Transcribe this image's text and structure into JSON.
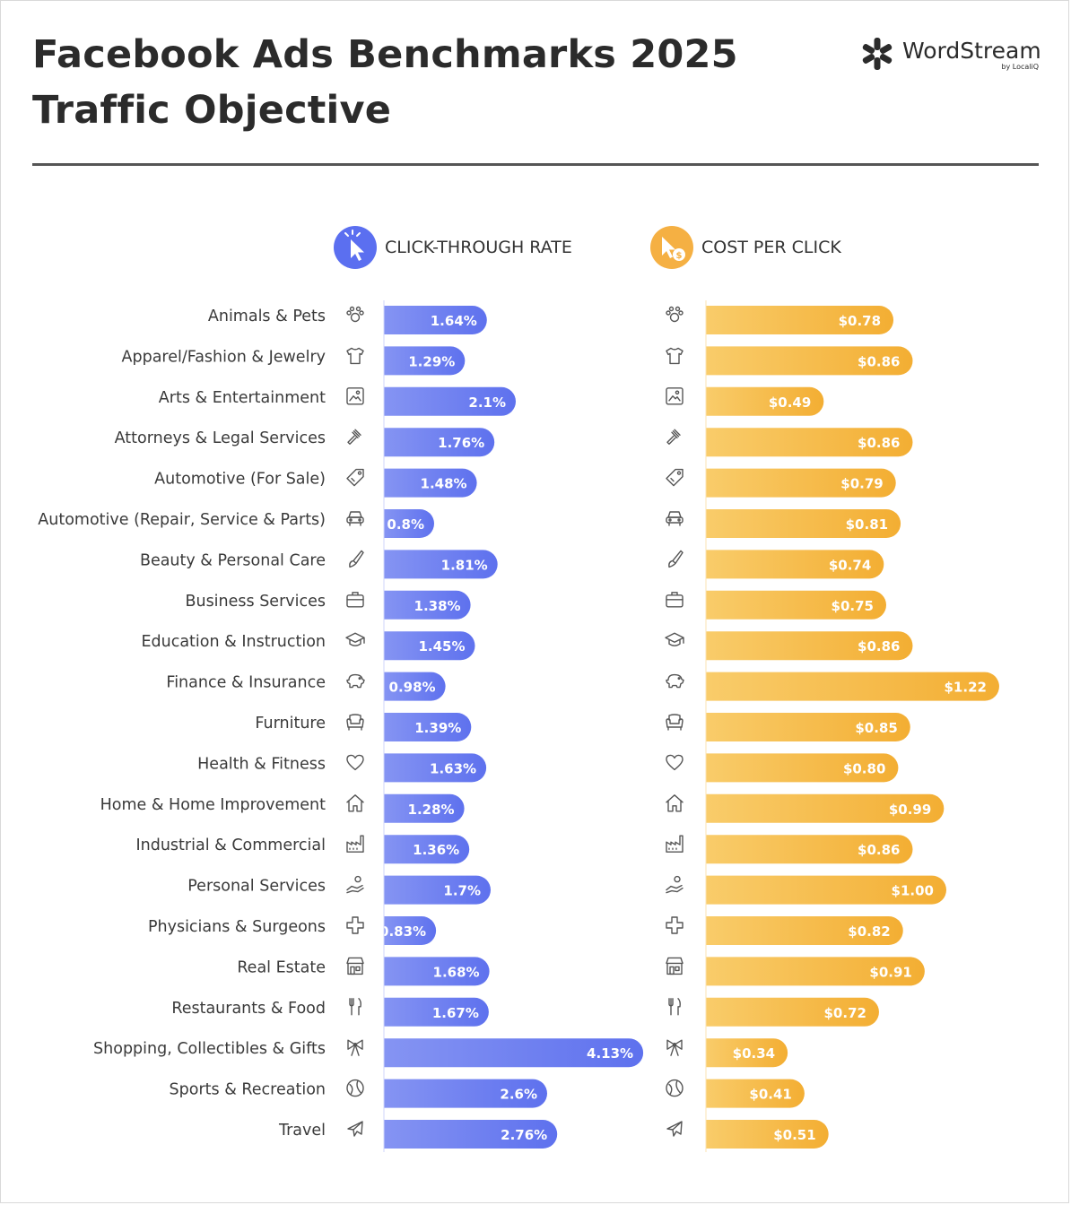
{
  "title_line1": "Facebook Ads Benchmarks 2025",
  "title_line2": "Traffic Objective",
  "brand": {
    "name": "WordStream",
    "sub": "by LocaliQ"
  },
  "colors": {
    "ctr_bar": "#6b7df0",
    "cpc_bar": "#f5b83d",
    "ctr_icon": "#5b6ff0",
    "cpc_icon": "#f5b043",
    "text": "#333333"
  },
  "chart_data": [
    {
      "type": "bar",
      "orientation": "horizontal",
      "title": "CLICK-THROUGH RATE",
      "title_icon": "cursor-click-icon",
      "categories": [
        "Animals & Pets",
        "Apparel/Fashion & Jewelry",
        "Arts & Entertainment",
        "Attorneys & Legal Services",
        "Automotive (For Sale)",
        "Automotive (Repair, Service & Parts)",
        "Beauty & Personal Care",
        "Business Services",
        "Education & Instruction",
        "Finance & Insurance",
        "Furniture",
        "Health & Fitness",
        "Home & Home Improvement",
        "Industrial & Commercial",
        "Personal Services",
        "Physicians & Surgeons",
        "Real Estate",
        "Restaurants & Food",
        "Shopping, Collectibles & Gifts",
        "Sports & Recreation",
        "Travel"
      ],
      "values": [
        1.64,
        1.29,
        2.1,
        1.76,
        1.48,
        0.8,
        1.81,
        1.38,
        1.45,
        0.98,
        1.39,
        1.63,
        1.28,
        1.36,
        1.7,
        0.83,
        1.68,
        1.67,
        4.13,
        2.6,
        2.76
      ],
      "value_labels": [
        "1.64%",
        "1.29%",
        "2.1%",
        "1.76%",
        "1.48%",
        "0.8%",
        "1.81%",
        "1.38%",
        "1.45%",
        "0.98%",
        "1.39%",
        "1.63%",
        "1.28%",
        "1.36%",
        "1.7%",
        "0.83%",
        "1.68%",
        "1.67%",
        "4.13%",
        "2.6%",
        "2.76%"
      ],
      "unit": "%"
    },
    {
      "type": "bar",
      "orientation": "horizontal",
      "title": "COST PER CLICK",
      "title_icon": "cursor-dollar-icon",
      "categories": [
        "Animals & Pets",
        "Apparel/Fashion & Jewelry",
        "Arts & Entertainment",
        "Attorneys & Legal Services",
        "Automotive (For Sale)",
        "Automotive (Repair, Service & Parts)",
        "Beauty & Personal Care",
        "Business Services",
        "Education & Instruction",
        "Finance & Insurance",
        "Furniture",
        "Health & Fitness",
        "Home & Home Improvement",
        "Industrial & Commercial",
        "Personal Services",
        "Physicians & Surgeons",
        "Real Estate",
        "Restaurants & Food",
        "Shopping, Collectibles & Gifts",
        "Sports & Recreation",
        "Travel"
      ],
      "values": [
        0.78,
        0.86,
        0.49,
        0.86,
        0.79,
        0.81,
        0.74,
        0.75,
        0.86,
        1.22,
        0.85,
        0.8,
        0.99,
        0.86,
        1.0,
        0.82,
        0.91,
        0.72,
        0.34,
        0.41,
        0.51
      ],
      "value_labels": [
        "$0.78",
        "$0.86",
        "$0.49",
        "$0.86",
        "$0.79",
        "$0.81",
        "$0.74",
        "$0.75",
        "$0.86",
        "$1.22",
        "$0.85",
        "$0.80",
        "$0.99",
        "$0.86",
        "$1.00",
        "$0.82",
        "$0.91",
        "$0.72",
        "$0.34",
        "$0.41",
        "$0.51"
      ],
      "unit": "$"
    }
  ],
  "category_icons": [
    "paw-icon",
    "tshirt-icon",
    "picture-icon",
    "gavel-icon",
    "tag-icon",
    "car-icon",
    "brush-icon",
    "briefcase-icon",
    "graduation-cap-icon",
    "piggy-bank-icon",
    "armchair-icon",
    "heart-icon",
    "house-icon",
    "factory-icon",
    "helping-hand-icon",
    "medical-cross-icon",
    "storefront-icon",
    "fork-knife-icon",
    "gift-bow-icon",
    "ball-icon",
    "airplane-icon"
  ]
}
